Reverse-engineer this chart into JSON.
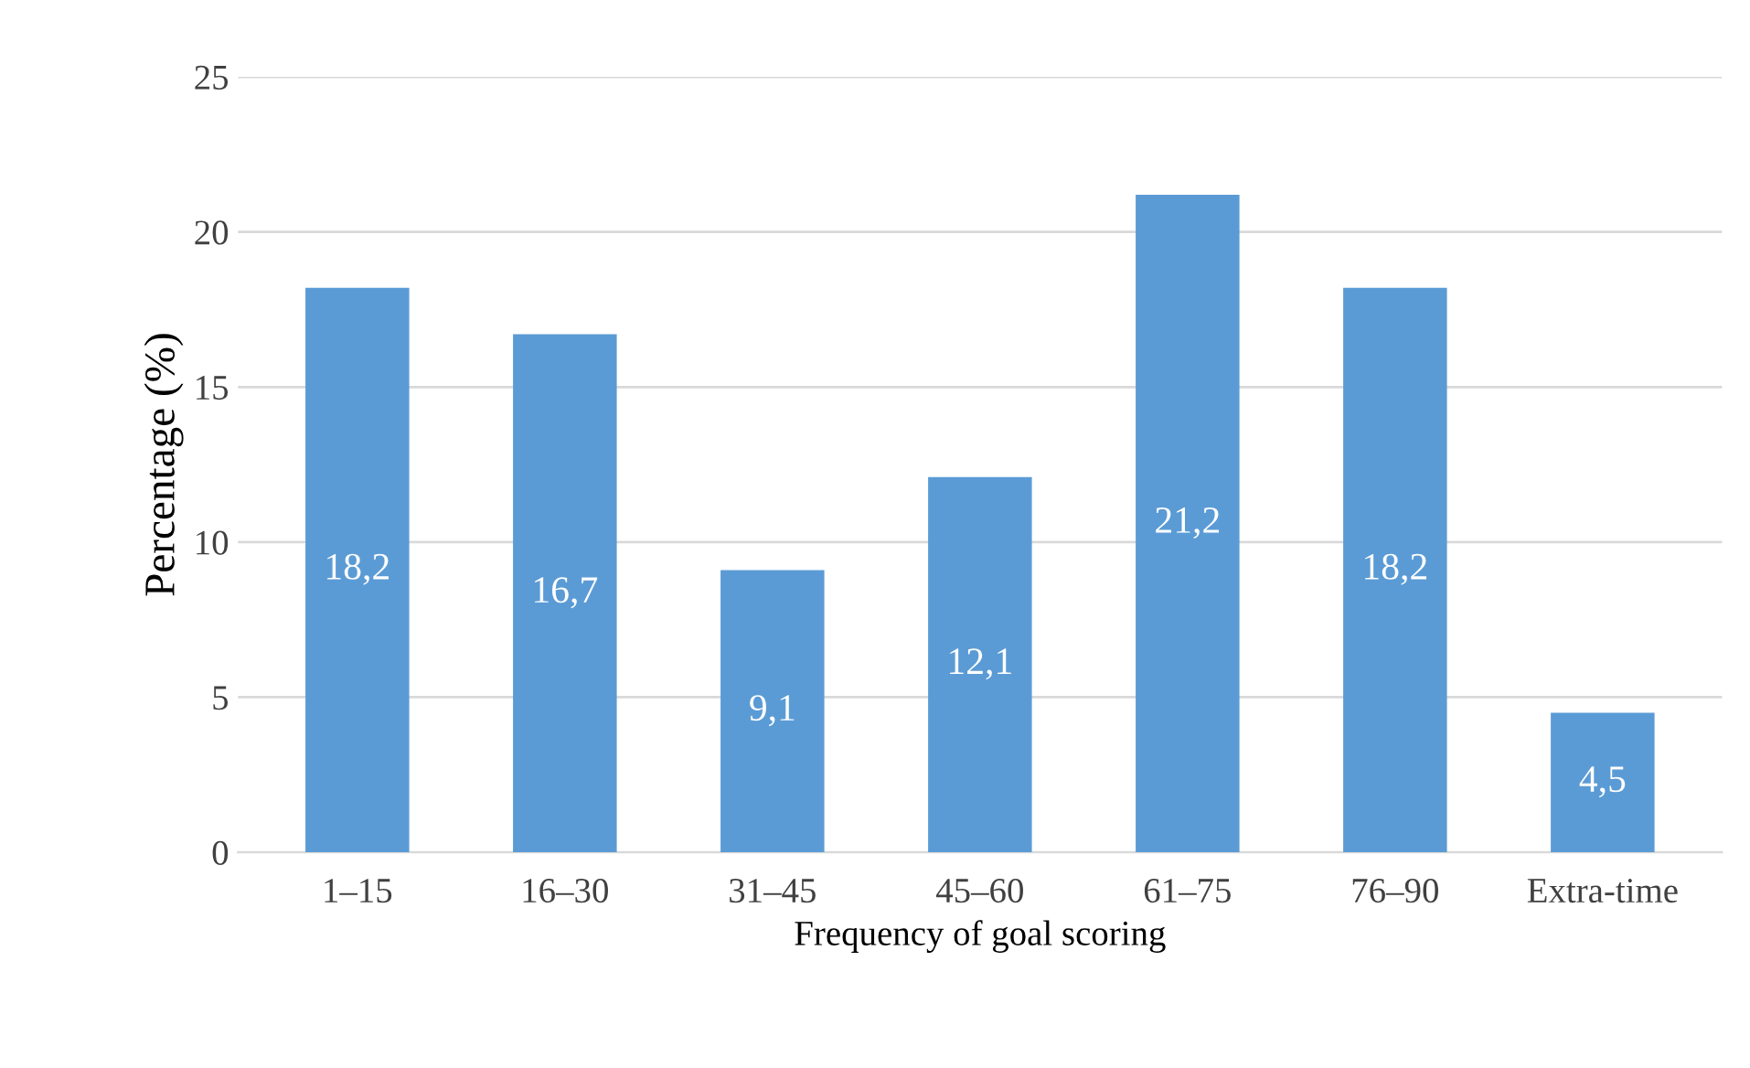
{
  "chart_data": {
    "type": "bar",
    "xlabel": "Frequency of goal scoring",
    "ylabel": "Percentage (%)",
    "categories": [
      "1–15",
      "16–30",
      "31–45",
      "45–60",
      "61–75",
      "76–90",
      "Extra-time"
    ],
    "values": [
      18.2,
      16.7,
      9.1,
      12.1,
      21.2,
      18.2,
      4.5
    ],
    "value_labels": [
      "18,2",
      "16,7",
      "9,1",
      "12,1",
      "21,2",
      "18,2",
      "4,5"
    ],
    "color": "#5b9bd5",
    "ylim": [
      0,
      25
    ],
    "yticks": [
      0,
      5,
      10,
      15,
      20,
      25
    ],
    "grid": "y"
  }
}
